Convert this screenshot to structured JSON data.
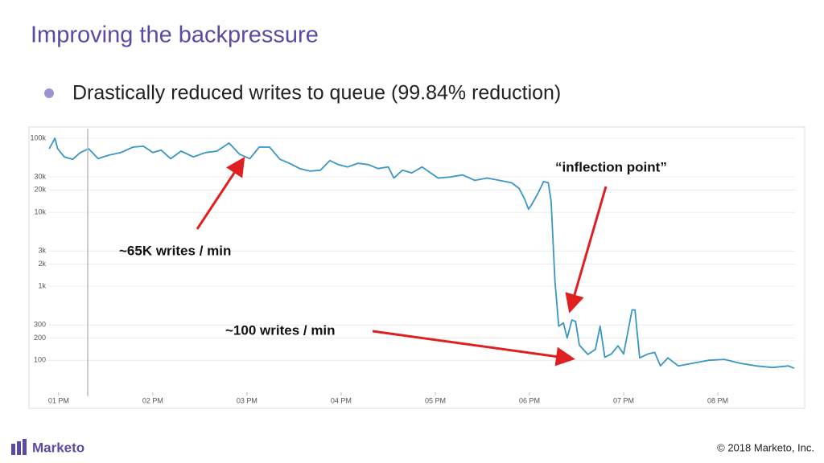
{
  "slide": {
    "title": "Improving the backpressure",
    "bullet": "Drastically reduced writes to queue (99.84% reduction)",
    "logo": "Marketo",
    "footer": "© 2018 Marketo, Inc."
  },
  "chart_data": {
    "type": "line",
    "color": "#3a96c4",
    "log_y": true,
    "grid": true,
    "annotations": [
      "~65K writes / min",
      "“inflection point”",
      "~100 writes / min"
    ],
    "x": [
      12.9,
      12.96,
      12.99,
      13.06,
      13.15,
      13.23,
      13.32,
      13.42,
      13.53,
      13.66,
      13.79,
      13.9,
      14.0,
      14.09,
      14.19,
      14.3,
      14.43,
      14.56,
      14.68,
      14.81,
      14.92,
      15.03,
      15.13,
      15.24,
      15.35,
      15.45,
      15.56,
      15.67,
      15.78,
      15.88,
      15.97,
      16.07,
      16.18,
      16.29,
      16.39,
      16.5,
      16.56,
      16.65,
      16.75,
      16.86,
      16.95,
      17.03,
      17.16,
      17.29,
      17.42,
      17.55,
      17.68,
      17.81,
      17.89,
      17.95,
      17.99,
      18.02,
      18.09,
      18.15,
      18.2,
      18.23,
      18.27,
      18.31,
      18.36,
      18.4,
      18.45,
      18.49,
      18.53,
      18.62,
      18.7,
      18.75,
      18.8,
      18.87,
      18.94,
      19.0,
      19.09,
      19.12,
      19.17,
      19.26,
      19.33,
      19.39,
      19.47,
      19.58,
      19.73,
      19.9,
      20.07,
      20.24,
      20.41,
      20.58,
      20.75,
      20.81
    ],
    "values": [
      72000,
      100000,
      72000,
      56000,
      52000,
      64000,
      72000,
      53000,
      59000,
      64000,
      76000,
      78000,
      64000,
      69000,
      53000,
      67000,
      56000,
      64000,
      67000,
      86000,
      61000,
      53000,
      76000,
      76000,
      52000,
      46000,
      39000,
      36000,
      37000,
      50000,
      44000,
      41000,
      46000,
      44000,
      39000,
      41000,
      29000,
      37000,
      34000,
      41000,
      34000,
      29000,
      30000,
      32000,
      27000,
      29000,
      27000,
      25000,
      21000,
      15000,
      11000,
      12500,
      18000,
      26000,
      25000,
      14000,
      1200,
      290,
      320,
      200,
      350,
      335,
      160,
      120,
      140,
      290,
      110,
      122,
      157,
      122,
      480,
      480,
      108,
      122,
      128,
      84,
      108,
      84,
      91,
      100,
      103,
      91,
      84,
      80,
      84,
      78
    ],
    "xlim": [
      12.89,
      20.82
    ],
    "xticks": [
      {
        "value": 13,
        "label": "01 PM"
      },
      {
        "value": 14,
        "label": "02 PM"
      },
      {
        "value": 15,
        "label": "03 PM"
      },
      {
        "value": 16,
        "label": "04 PM"
      },
      {
        "value": 17,
        "label": "05 PM"
      },
      {
        "value": 18,
        "label": "06 PM"
      },
      {
        "value": 19,
        "label": "07 PM"
      },
      {
        "value": 20,
        "label": "08 PM"
      }
    ],
    "ylim": [
      37,
      135000
    ],
    "yticks": [
      {
        "value": 100000,
        "label": "100k"
      },
      {
        "value": 30000,
        "label": "30k"
      },
      {
        "value": 20000,
        "label": "20k"
      },
      {
        "value": 10000,
        "label": "10k"
      },
      {
        "value": 3000,
        "label": "3k"
      },
      {
        "value": 2000,
        "label": "2k"
      },
      {
        "value": 1000,
        "label": "1k"
      },
      300,
      200,
      100
    ]
  }
}
